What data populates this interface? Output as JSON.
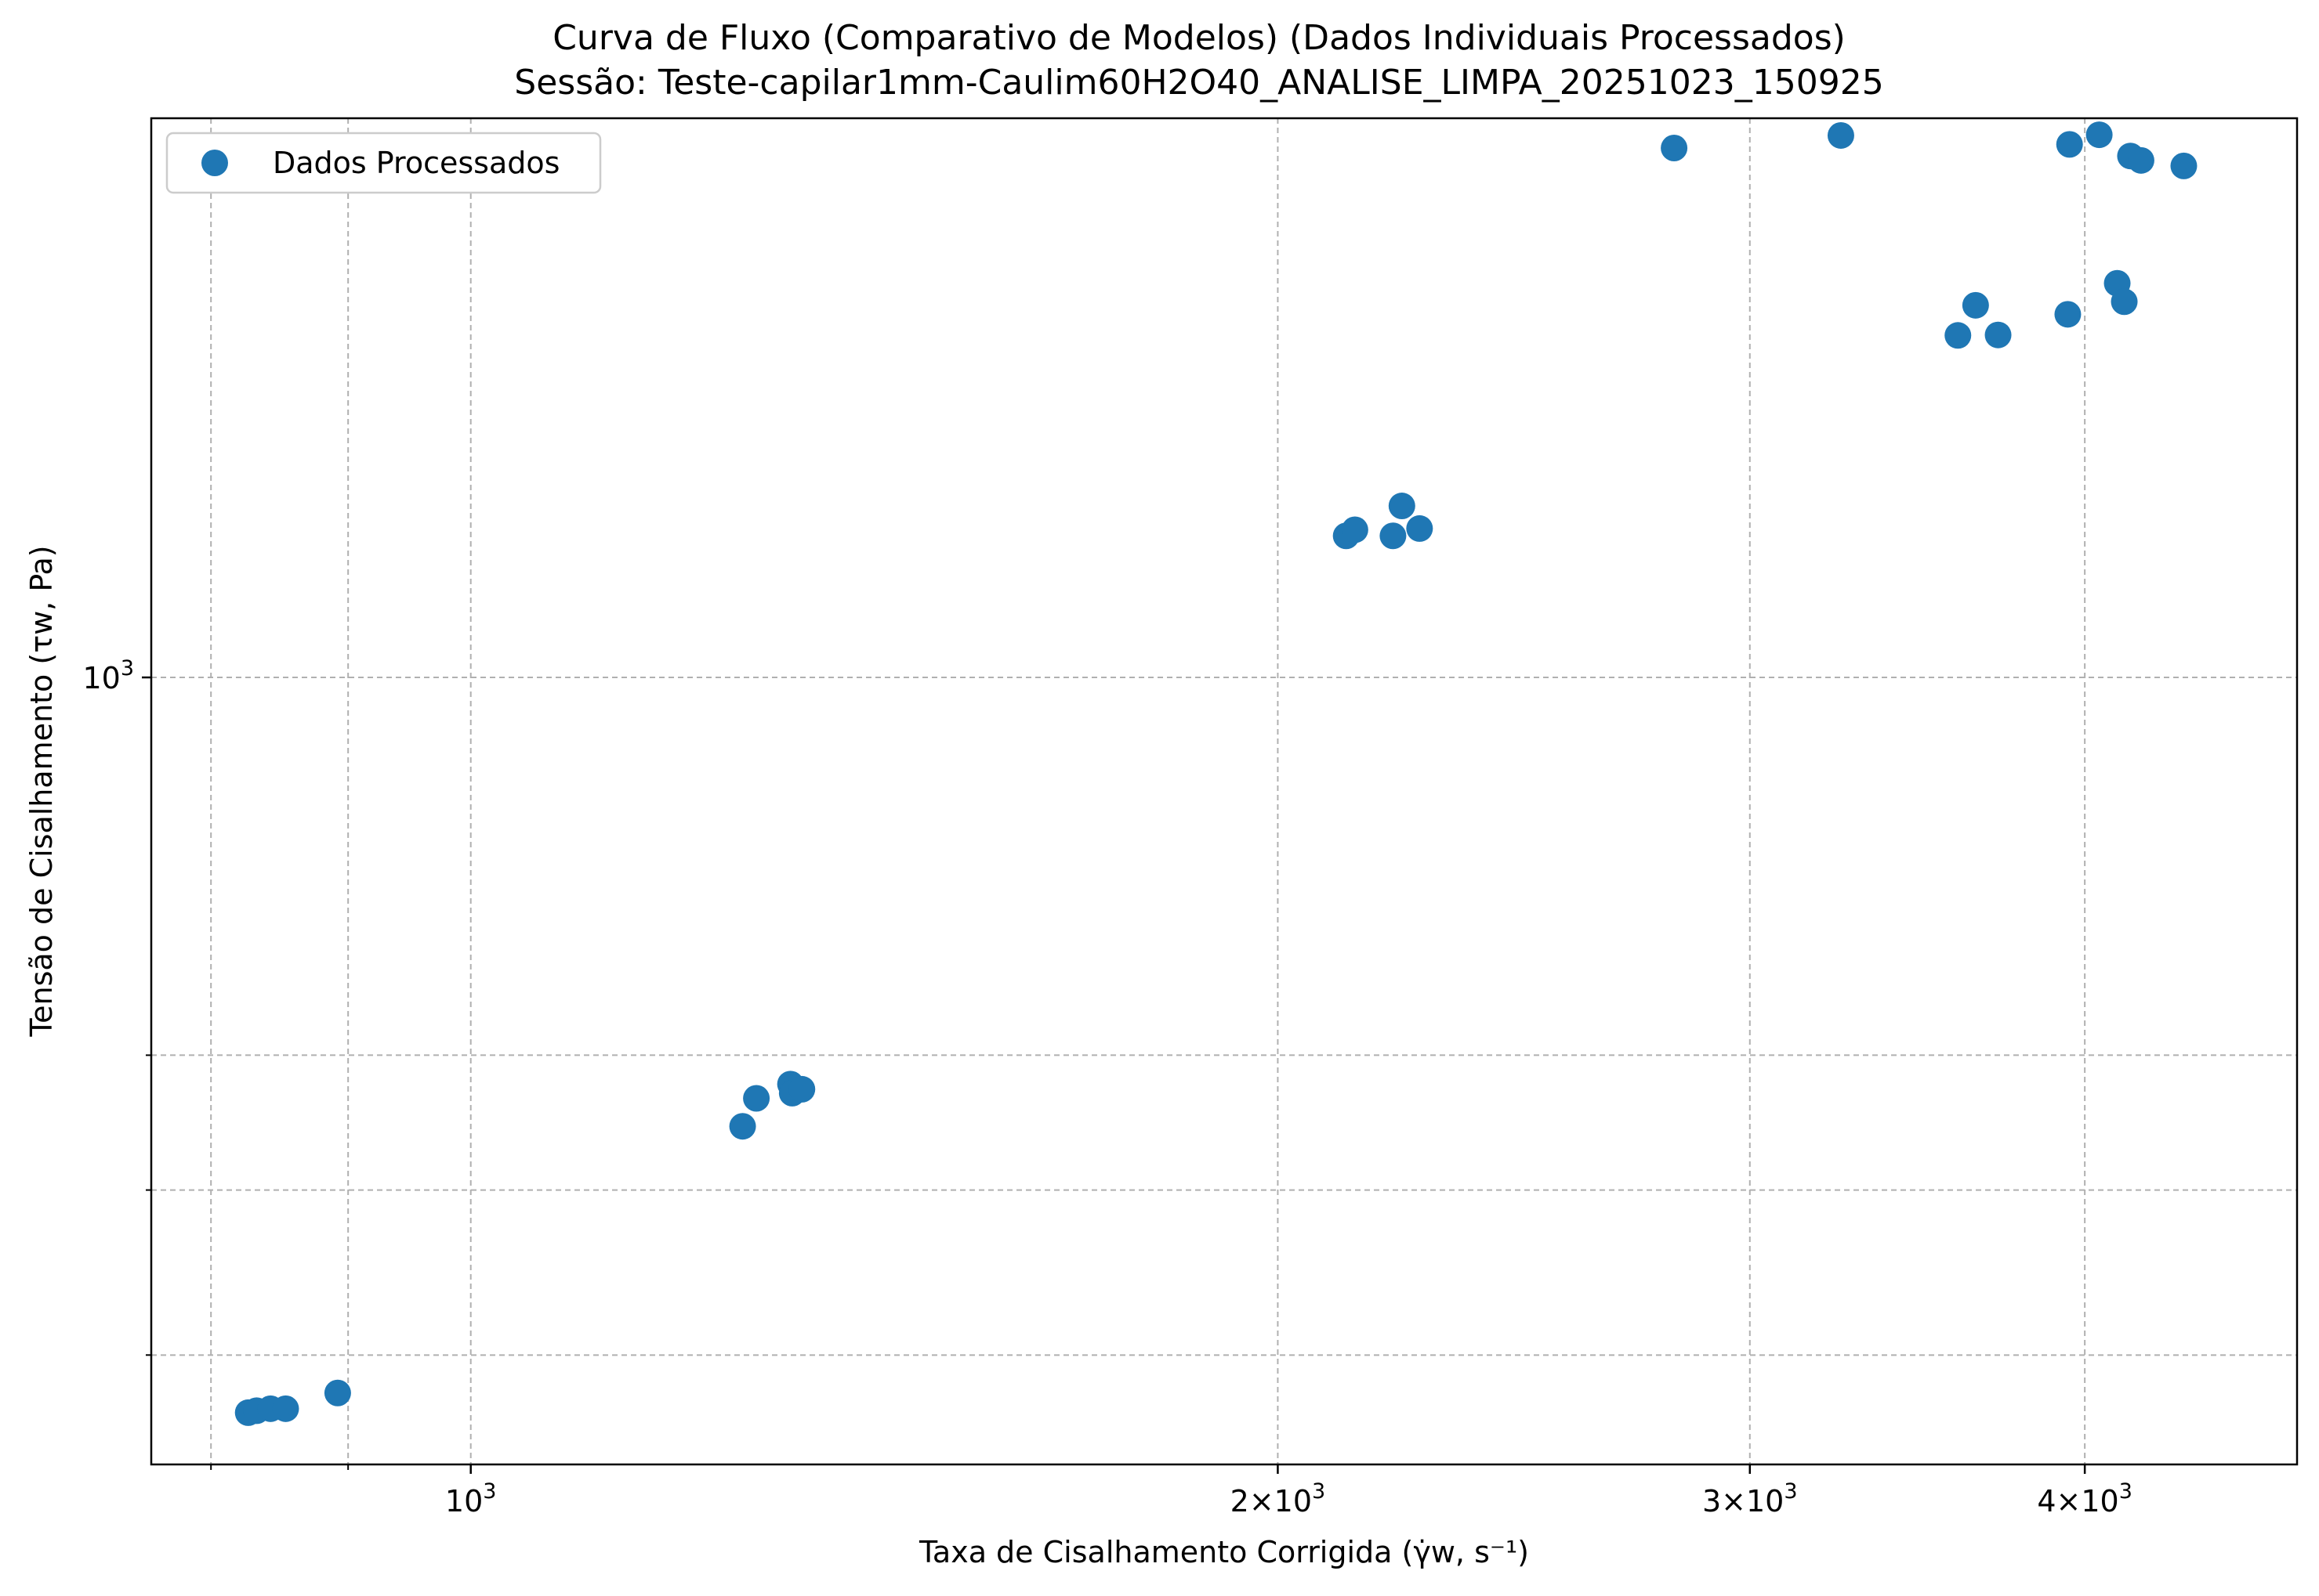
{
  "chart_data": {
    "type": "scatter",
    "title": "Curva de Fluxo (Comparativo de Modelos) (Dados Individuais Processados)",
    "subtitle": "Sessão: Teste-capilar1mm-Caulim60H2O40_ANALISE_LIMPA_20251023_150925",
    "xlabel": "Taxa de Cisalhamento Corrigida (γ̇w, s⁻¹)",
    "ylabel": "Tensão de Cisalhamento (τw, Pa)",
    "x_scale": "log",
    "y_scale": "log",
    "xlim": [
      760,
      4800
    ],
    "ylim": [
      345,
      2130
    ],
    "grid": true,
    "legend_position": "top-left",
    "x_major_ticks": [
      {
        "value": 1000,
        "label": "10³"
      },
      {
        "value": 2000,
        "label": "2×10³"
      },
      {
        "value": 3000,
        "label": "3×10³"
      },
      {
        "value": 4000,
        "label": "4×10³"
      }
    ],
    "x_minor_ticks": [
      800,
      900
    ],
    "y_major_ticks": [
      {
        "value": 1000,
        "label": "10³"
      }
    ],
    "y_minor_ticks": [
      400,
      500,
      600
    ],
    "series": [
      {
        "name": "Dados Processados",
        "color": "#1f77b4",
        "points": [
          {
            "x": 826,
            "y": 370
          },
          {
            "x": 832,
            "y": 371
          },
          {
            "x": 842,
            "y": 372
          },
          {
            "x": 853,
            "y": 372
          },
          {
            "x": 892,
            "y": 380
          },
          {
            "x": 1263,
            "y": 545
          },
          {
            "x": 1278,
            "y": 566
          },
          {
            "x": 1316,
            "y": 577
          },
          {
            "x": 1318,
            "y": 570
          },
          {
            "x": 1329,
            "y": 573
          },
          {
            "x": 2121,
            "y": 1211
          },
          {
            "x": 2137,
            "y": 1221
          },
          {
            "x": 2208,
            "y": 1211
          },
          {
            "x": 2225,
            "y": 1261
          },
          {
            "x": 2259,
            "y": 1223
          },
          {
            "x": 2811,
            "y": 2046
          },
          {
            "x": 3244,
            "y": 2081
          },
          {
            "x": 3587,
            "y": 1588
          },
          {
            "x": 3642,
            "y": 1654
          },
          {
            "x": 3713,
            "y": 1589
          },
          {
            "x": 3942,
            "y": 1634
          },
          {
            "x": 3948,
            "y": 2056
          },
          {
            "x": 4050,
            "y": 2083
          },
          {
            "x": 4113,
            "y": 1704
          },
          {
            "x": 4138,
            "y": 1662
          },
          {
            "x": 4160,
            "y": 2024
          },
          {
            "x": 4198,
            "y": 2012
          },
          {
            "x": 4355,
            "y": 1997
          }
        ]
      }
    ]
  }
}
